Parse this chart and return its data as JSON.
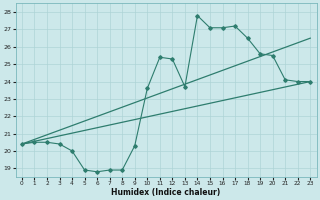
{
  "xlabel": "Humidex (Indice chaleur)",
  "bg_color": "#cce8ea",
  "grid_color": "#aed4d6",
  "line_color": "#2e7d6e",
  "xlim": [
    -0.5,
    23.5
  ],
  "ylim": [
    18.5,
    28.5
  ],
  "xticks": [
    0,
    1,
    2,
    3,
    4,
    5,
    6,
    7,
    8,
    9,
    10,
    11,
    12,
    13,
    14,
    15,
    16,
    17,
    18,
    19,
    20,
    21,
    22,
    23
  ],
  "yticks": [
    19,
    20,
    21,
    22,
    23,
    24,
    25,
    26,
    27,
    28
  ],
  "line1_x": [
    0,
    1,
    2,
    3,
    4,
    5,
    6,
    7,
    8,
    9,
    10,
    11,
    12,
    13,
    14,
    15,
    16,
    17,
    18,
    19,
    20,
    21,
    22,
    23
  ],
  "line1_y": [
    20.4,
    20.5,
    20.5,
    20.4,
    20.0,
    18.9,
    18.8,
    18.9,
    18.9,
    20.3,
    23.6,
    25.4,
    25.3,
    23.7,
    27.8,
    27.1,
    27.1,
    27.2,
    26.5,
    25.6,
    25.5,
    24.1,
    24.0,
    24.0
  ],
  "line2_x": [
    0,
    23
  ],
  "line2_y": [
    20.4,
    24.0
  ],
  "line3_x": [
    0,
    23
  ],
  "line3_y": [
    20.4,
    26.5
  ]
}
